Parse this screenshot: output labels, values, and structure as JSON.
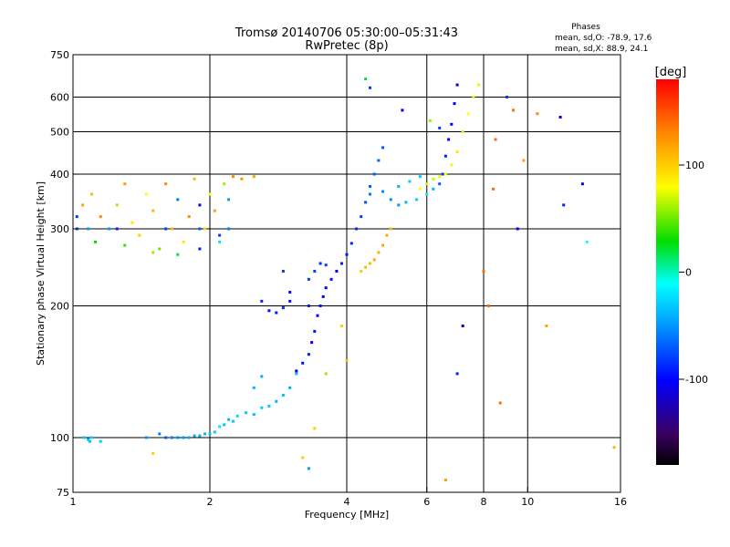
{
  "chart_data": {
    "type": "scatter",
    "title_line1": "Tromsø 20140706 05:30:00–05:31:43",
    "title_line2": "RwPretec (8p)",
    "stats_title": "Phases",
    "stats_line1": "mean, sd,O:  -78.9, 17.6",
    "stats_line2": "mean, sd,X:  88.9, 24.1",
    "xlabel": "Frequency [MHz]",
    "ylabel": "Stationary phase Virtual Height [km]",
    "xscale": "log",
    "yscale": "log",
    "xlim": [
      1,
      16
    ],
    "ylim": [
      75,
      750
    ],
    "xticks": [
      1,
      2,
      4,
      6,
      8,
      10,
      16
    ],
    "xtick_labels": [
      "1",
      "2",
      "4",
      "6",
      "8",
      "10",
      "16"
    ],
    "xgrid": [
      2,
      4,
      6,
      8,
      10
    ],
    "yticks": [
      75,
      100,
      200,
      300,
      400,
      500,
      600,
      750
    ],
    "ytick_labels": [
      "75",
      "100",
      "200",
      "300",
      "400",
      "500",
      "600",
      "750"
    ],
    "ygrid": [
      100,
      200,
      300,
      400,
      500,
      600
    ],
    "grid": true,
    "colorbar": {
      "label": "[deg]",
      "range": [
        -180,
        180
      ],
      "ticks": [
        100,
        0,
        -100
      ],
      "tick_labels": [
        "100",
        "0",
        "-100"
      ]
    },
    "series": [
      {
        "points": [
          [
            1.06,
            100,
            -30
          ],
          [
            1.08,
            99,
            -40
          ],
          [
            1.09,
            98,
            -35
          ],
          [
            1.1,
            100,
            -25
          ],
          [
            1.15,
            98,
            -30
          ],
          [
            1.45,
            100,
            -50
          ],
          [
            1.55,
            102,
            -60
          ],
          [
            1.6,
            100,
            -70
          ],
          [
            1.65,
            100,
            -60
          ],
          [
            1.7,
            100,
            -55
          ],
          [
            1.75,
            100,
            -50
          ],
          [
            1.8,
            100,
            -45
          ],
          [
            1.85,
            101,
            -40
          ],
          [
            1.9,
            101,
            -40
          ],
          [
            1.95,
            102,
            -40
          ],
          [
            2.0,
            102,
            -35
          ],
          [
            2.05,
            103,
            -30
          ],
          [
            2.1,
            106,
            -20
          ],
          [
            2.15,
            107,
            -35
          ],
          [
            2.2,
            110,
            -40
          ],
          [
            2.25,
            109,
            -30
          ],
          [
            2.3,
            112,
            -25
          ],
          [
            2.4,
            114,
            -30
          ],
          [
            2.5,
            113,
            -35
          ],
          [
            2.6,
            117,
            -30
          ],
          [
            2.7,
            118,
            -30
          ],
          [
            2.8,
            121,
            -40
          ],
          [
            2.9,
            125,
            -35
          ],
          [
            3.0,
            130,
            -45
          ],
          [
            3.1,
            140,
            -40
          ],
          [
            2.5,
            130,
            -40
          ],
          [
            2.6,
            138,
            -45
          ],
          [
            3.1,
            142,
            -100
          ],
          [
            3.2,
            148,
            -95
          ],
          [
            3.3,
            155,
            -90
          ],
          [
            3.35,
            165,
            -100
          ],
          [
            3.4,
            175,
            -95
          ],
          [
            3.45,
            190,
            -100
          ],
          [
            3.5,
            200,
            -95
          ],
          [
            3.55,
            210,
            -100
          ],
          [
            3.6,
            220,
            -100
          ],
          [
            3.7,
            230,
            -95
          ],
          [
            3.8,
            240,
            -100
          ],
          [
            3.9,
            250,
            -90
          ],
          [
            4.0,
            262,
            -95
          ],
          [
            4.1,
            278,
            -90
          ],
          [
            4.2,
            300,
            -85
          ],
          [
            4.3,
            320,
            -80
          ],
          [
            4.4,
            345,
            -75
          ],
          [
            4.5,
            375,
            -70
          ],
          [
            4.6,
            400,
            -70
          ],
          [
            4.7,
            430,
            -70
          ],
          [
            4.8,
            460,
            -70
          ],
          [
            2.6,
            205,
            -90
          ],
          [
            2.7,
            195,
            -95
          ],
          [
            2.8,
            193,
            -90
          ],
          [
            2.9,
            198,
            -85
          ],
          [
            3.0,
            205,
            -95
          ],
          [
            3.0,
            215,
            -95
          ],
          [
            2.9,
            240,
            -80
          ],
          [
            3.3,
            230,
            -80
          ],
          [
            3.4,
            240,
            -80
          ],
          [
            3.5,
            250,
            -85
          ],
          [
            3.6,
            248,
            -80
          ],
          [
            3.3,
            200,
            -90
          ],
          [
            4.3,
            240,
            100
          ],
          [
            4.4,
            245,
            110
          ],
          [
            4.5,
            250,
            110
          ],
          [
            4.6,
            255,
            115
          ],
          [
            4.7,
            265,
            115
          ],
          [
            4.8,
            275,
            115
          ],
          [
            4.9,
            290,
            115
          ],
          [
            5.0,
            300,
            110
          ],
          [
            4.5,
            360,
            -60
          ],
          [
            4.8,
            365,
            -55
          ],
          [
            5.0,
            350,
            -55
          ],
          [
            5.2,
            340,
            -50
          ],
          [
            5.4,
            345,
            -40
          ],
          [
            5.7,
            350,
            -30
          ],
          [
            6.0,
            360,
            -20
          ],
          [
            6.2,
            370,
            -40
          ],
          [
            6.4,
            380,
            -70
          ],
          [
            6.5,
            400,
            -80
          ],
          [
            6.6,
            440,
            -90
          ],
          [
            6.7,
            480,
            -100
          ],
          [
            6.8,
            520,
            -100
          ],
          [
            6.9,
            580,
            -100
          ],
          [
            7.0,
            640,
            -100
          ],
          [
            5.2,
            375,
            -40
          ],
          [
            5.5,
            385,
            -30
          ],
          [
            5.8,
            395,
            -30
          ],
          [
            5.8,
            370,
            80
          ],
          [
            6.0,
            380,
            70
          ],
          [
            6.2,
            390,
            70
          ],
          [
            6.4,
            395,
            75
          ],
          [
            6.6,
            400,
            80
          ],
          [
            6.8,
            420,
            85
          ],
          [
            7.0,
            450,
            90
          ],
          [
            7.2,
            500,
            90
          ],
          [
            7.4,
            550,
            80
          ],
          [
            7.6,
            600,
            75
          ],
          [
            7.8,
            640,
            75
          ],
          [
            1.05,
            340,
            120
          ],
          [
            1.1,
            360,
            110
          ],
          [
            1.15,
            320,
            130
          ],
          [
            1.2,
            300,
            -50
          ],
          [
            1.25,
            340,
            60
          ],
          [
            1.3,
            380,
            120
          ],
          [
            1.35,
            310,
            90
          ],
          [
            1.4,
            290,
            100
          ],
          [
            1.45,
            360,
            80
          ],
          [
            1.5,
            330,
            110
          ],
          [
            1.55,
            270,
            50
          ],
          [
            1.6,
            380,
            130
          ],
          [
            1.65,
            300,
            110
          ],
          [
            1.7,
            350,
            -60
          ],
          [
            1.75,
            280,
            90
          ],
          [
            1.8,
            320,
            130
          ],
          [
            1.85,
            390,
            110
          ],
          [
            1.9,
            340,
            -100
          ],
          [
            1.95,
            300,
            100
          ],
          [
            2.0,
            360,
            80
          ],
          [
            2.05,
            330,
            120
          ],
          [
            2.1,
            290,
            -80
          ],
          [
            2.15,
            380,
            60
          ],
          [
            2.2,
            350,
            -50
          ],
          [
            2.25,
            395,
            130
          ],
          [
            2.35,
            390,
            125
          ],
          [
            2.5,
            395,
            120
          ],
          [
            1.12,
            280,
            30
          ],
          [
            1.3,
            275,
            40
          ],
          [
            1.5,
            265,
            60
          ],
          [
            1.7,
            262,
            20
          ],
          [
            1.9,
            270,
            -90
          ],
          [
            2.1,
            280,
            -20
          ],
          [
            1.02,
            320,
            -80
          ],
          [
            1.02,
            300,
            -70
          ],
          [
            1.08,
            300,
            -50
          ],
          [
            1.25,
            300,
            -90
          ],
          [
            1.6,
            300,
            -80
          ],
          [
            1.9,
            300,
            -70
          ],
          [
            2.2,
            300,
            -60
          ],
          [
            3.2,
            90,
            100
          ],
          [
            3.4,
            105,
            100
          ],
          [
            3.6,
            140,
            60
          ],
          [
            3.9,
            180,
            100
          ],
          [
            4.0,
            150,
            110
          ],
          [
            4.4,
            660,
            20
          ],
          [
            4.5,
            630,
            -80
          ],
          [
            5.3,
            560,
            -100
          ],
          [
            6.1,
            530,
            60
          ],
          [
            6.4,
            510,
            -80
          ],
          [
            7.0,
            140,
            -90
          ],
          [
            7.2,
            180,
            -120
          ],
          [
            8.0,
            240,
            140
          ],
          [
            8.2,
            200,
            140
          ],
          [
            8.5,
            480,
            140
          ],
          [
            8.4,
            370,
            140
          ],
          [
            8.7,
            120,
            140
          ],
          [
            9.0,
            600,
            -80
          ],
          [
            9.3,
            560,
            140
          ],
          [
            9.5,
            300,
            -100
          ],
          [
            9.8,
            430,
            120
          ],
          [
            10.5,
            550,
            130
          ],
          [
            11.8,
            540,
            -100
          ],
          [
            12.0,
            340,
            -90
          ],
          [
            13.2,
            380,
            -100
          ],
          [
            13.5,
            280,
            -10
          ],
          [
            15.5,
            95,
            110
          ],
          [
            11.0,
            180,
            120
          ],
          [
            6.6,
            80,
            120
          ],
          [
            3.3,
            85,
            -50
          ],
          [
            1.5,
            92,
            100
          ]
        ]
      }
    ]
  }
}
